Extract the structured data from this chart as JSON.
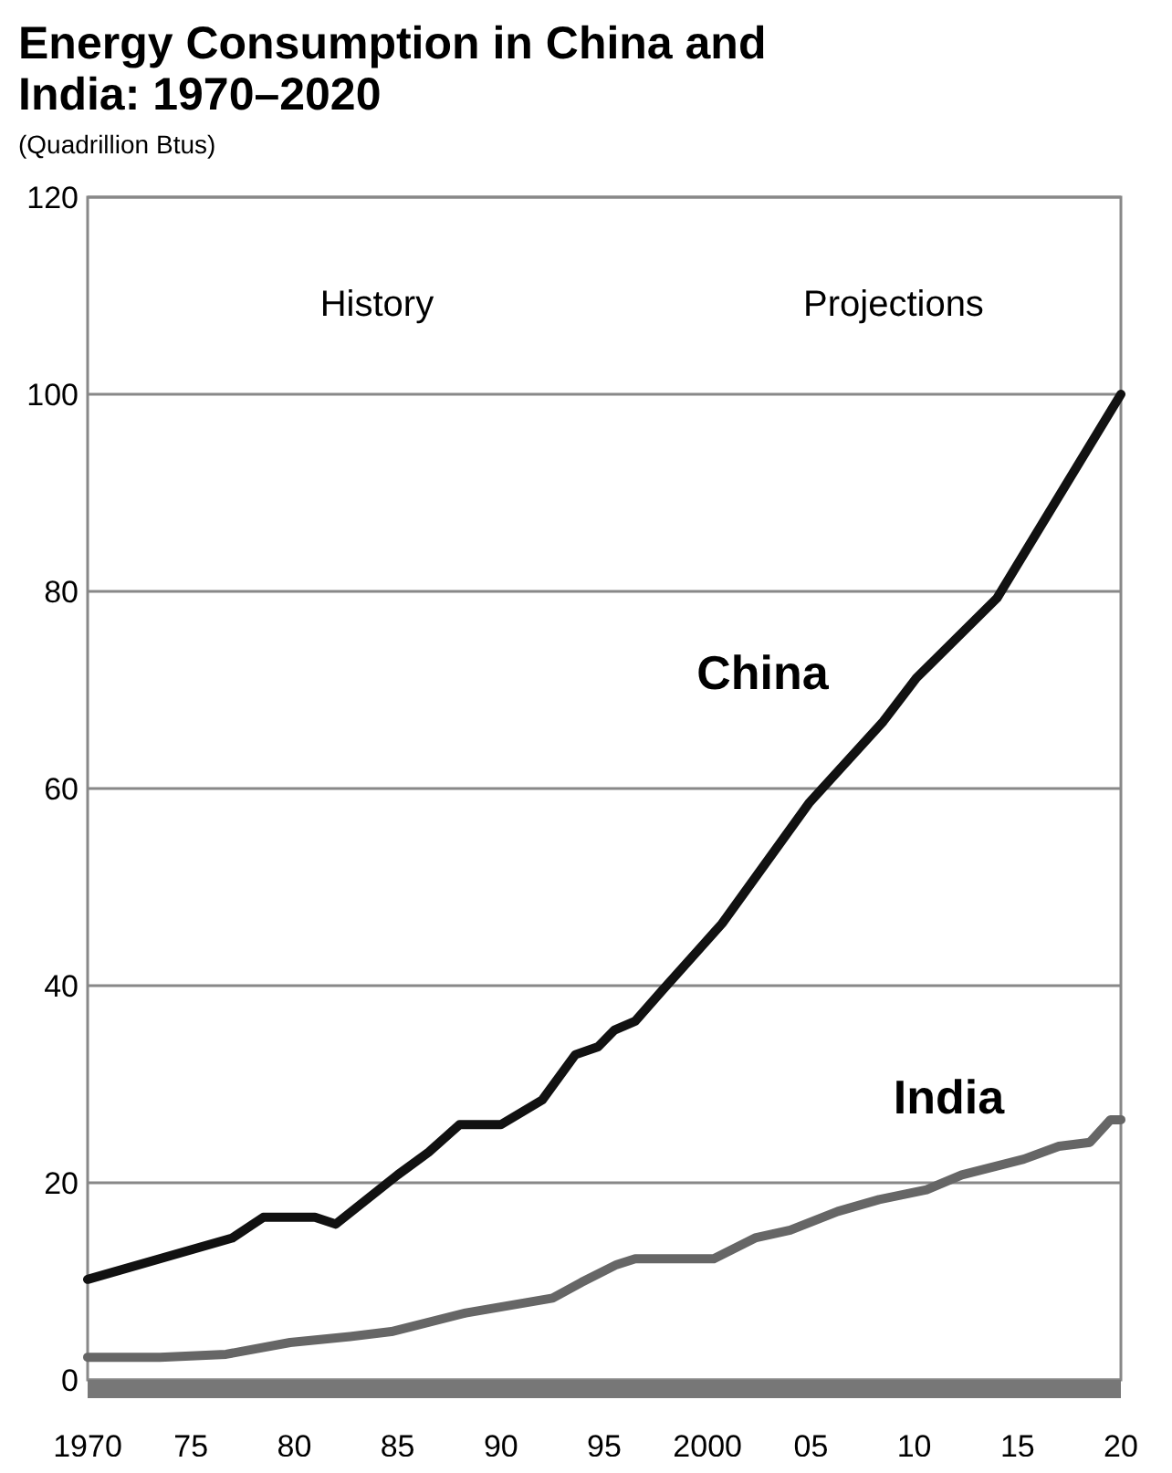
{
  "chart_data": {
    "type": "line",
    "title": "Energy Consumption in China and India: 1970–2020",
    "subtitle": "(Quadrillion Btus)",
    "annotations": [
      "History",
      "Projections"
    ],
    "xlim": [
      1970,
      2020
    ],
    "ylim": [
      0,
      120
    ],
    "xticks": [
      {
        "value": 1970,
        "label": "1970"
      },
      {
        "value": 1975,
        "label": "75"
      },
      {
        "value": 1980,
        "label": "80"
      },
      {
        "value": 1985,
        "label": "85"
      },
      {
        "value": 1990,
        "label": "90"
      },
      {
        "value": 1995,
        "label": "95"
      },
      {
        "value": 2000,
        "label": "2000"
      },
      {
        "value": 2005,
        "label": "05"
      },
      {
        "value": 2010,
        "label": "10"
      },
      {
        "value": 2015,
        "label": "15"
      },
      {
        "value": 2020,
        "label": "20"
      }
    ],
    "yticks": [
      0,
      20,
      40,
      60,
      80,
      100,
      120
    ],
    "grid": "y",
    "marker": "none",
    "line_style": "solid",
    "series": [
      {
        "name": "China",
        "color": "#111111",
        "x": [
          1970,
          1977,
          1978.5,
          1981,
          1982,
          1985,
          1986.5,
          1988,
          1990,
          1992,
          1993.6,
          1994.7,
          1995.5,
          1996.5,
          1997.8,
          2000.7,
          2004.9,
          2008.5,
          2010.1,
          2014,
          2020
        ],
        "values": [
          10.2,
          14.4,
          16.5,
          16.5,
          15.8,
          20.8,
          23.1,
          25.9,
          25.9,
          28.4,
          33,
          33.8,
          35.5,
          36.4,
          39.5,
          46.3,
          58.5,
          66.8,
          71.2,
          79.3,
          100
        ]
      },
      {
        "name": "India",
        "color": "#666666",
        "x": [
          1970,
          1973.5,
          1976.7,
          1979.8,
          1982.7,
          1984.7,
          1988.3,
          1992.5,
          1993.9,
          1995.6,
          1996.5,
          2000.3,
          2002.3,
          2004,
          2006.3,
          2008.3,
          2010.6,
          2012.3,
          2015.3,
          2017,
          2018.5,
          2019.5,
          2020
        ],
        "values": [
          2.3,
          2.3,
          2.6,
          3.8,
          4.4,
          4.9,
          6.8,
          8.3,
          9.9,
          11.7,
          12.3,
          12.3,
          14.4,
          15.2,
          17.1,
          18.3,
          19.3,
          20.8,
          22.4,
          23.7,
          24.1,
          26.4,
          26.4
        ]
      }
    ]
  }
}
